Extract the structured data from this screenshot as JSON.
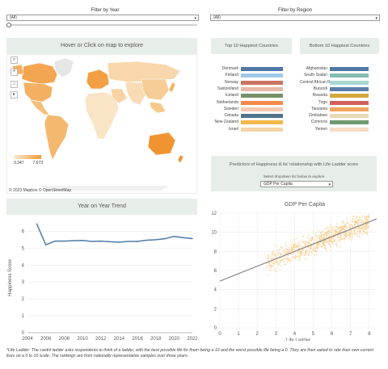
{
  "filters": {
    "year": {
      "title": "Filter by Year",
      "value": "(All)",
      "slider_fraction": 0.0
    },
    "region": {
      "title": "Filter by Region",
      "value": "(All)"
    }
  },
  "map": {
    "header": "Hover or Click on map to explore",
    "legend_min": "3.347",
    "legend_max": "7.673",
    "attribution": "© 2023 Mapbox  © OpenStreetMap",
    "colors": {
      "low": "#fbe9d2",
      "high": "#f19a34"
    }
  },
  "top10": {
    "header": "Top 10 Happiest Countries",
    "items": [
      {
        "label": "Denmark",
        "color": "#4e79a7"
      },
      {
        "label": "Finland",
        "color": "#a0cbe8"
      },
      {
        "label": "Norway",
        "color": "#c9745f"
      },
      {
        "label": "Switzerland",
        "color": "#e8b8a9"
      },
      {
        "label": "Iceland",
        "color": "#75906b"
      },
      {
        "label": "Netherlands",
        "color": "#f58a4b"
      },
      {
        "label": "Sweden",
        "color": "#f6c8b0"
      },
      {
        "label": "Canada",
        "color": "#50748c"
      },
      {
        "label": "New Zealand",
        "color": "#f2b84b"
      },
      {
        "label": "Israel",
        "color": "#f4d4a5"
      }
    ]
  },
  "bottom10": {
    "header": "Bottom 10 Happiest Countries",
    "items": [
      {
        "label": "Afghanistan",
        "color": "#4e79a7"
      },
      {
        "label": "South Sudan",
        "color": "#86bcb6"
      },
      {
        "label": "Central African R..",
        "color": "#a6d8d0"
      },
      {
        "label": "Burundi",
        "color": "#5b7fa8"
      },
      {
        "label": "Rwanda",
        "color": "#d4a93a"
      },
      {
        "label": "Togo",
        "color": "#d1605e"
      },
      {
        "label": "Tanzania",
        "color": "#f2a35e"
      },
      {
        "label": "Zimbabwe",
        "color": "#e8d9b5"
      },
      {
        "label": "Comoros",
        "color": "#6f9a6e"
      },
      {
        "label": "Yemen",
        "color": "#f5dcc2"
      }
    ]
  },
  "predictors": {
    "header": "Predictors of Happiness & its' relationship with Life Ladder score",
    "hint": "Select dropdown list below to explore",
    "selected": "GDP Per Capita"
  },
  "chart_data": [
    {
      "type": "line",
      "title": "Year on Year Trend",
      "xlabel": "",
      "ylabel": "Happiness Score",
      "x": [
        2005,
        2006,
        2007,
        2008,
        2009,
        2010,
        2011,
        2012,
        2013,
        2014,
        2015,
        2016,
        2017,
        2018,
        2019,
        2020,
        2021,
        2022
      ],
      "series": [
        {
          "values": [
            6.45,
            5.2,
            5.42,
            5.42,
            5.44,
            5.46,
            5.4,
            5.42,
            5.38,
            5.36,
            5.4,
            5.4,
            5.47,
            5.5,
            5.56,
            5.7,
            5.62,
            5.57
          ]
        }
      ],
      "xlim": [
        2004,
        2022
      ],
      "ylim": [
        0,
        6.5
      ],
      "xticks": [
        2004,
        2006,
        2008,
        2010,
        2012,
        2014,
        2016,
        2018,
        2020,
        2022
      ],
      "yticks": [
        0,
        1,
        2,
        3,
        4,
        5,
        6
      ],
      "color": "#4e79a7"
    },
    {
      "type": "scatter",
      "title": "GDP Per Capita",
      "xlabel": "Life Ladder",
      "ylabel": "",
      "xlim": [
        0,
        8.4
      ],
      "ylim": [
        0,
        12
      ],
      "xticks": [
        0,
        1,
        2,
        3,
        4,
        5,
        6,
        7,
        8
      ],
      "yticks": [
        0,
        2,
        4,
        6,
        8,
        10,
        12
      ],
      "trend": {
        "x": [
          0,
          8.4
        ],
        "y": [
          4.9,
          11.4
        ]
      },
      "point_color": "#f5c77e",
      "trend_color": "#888888",
      "cloud": {
        "x_range": [
          2.5,
          8.0
        ],
        "y_center_at_x0": 4.9,
        "slope": 0.78,
        "y_spread": 1.1
      }
    }
  ],
  "footnote": "*Life Ladder: The cantril ladder asks respondents to think of a ladder, with the best possible life for them being a 10 and the worst possible life being a 0. They are then asked to rate their own current lives on a 0 to 10 scale. The rankings are from nationally representative samples over three years."
}
